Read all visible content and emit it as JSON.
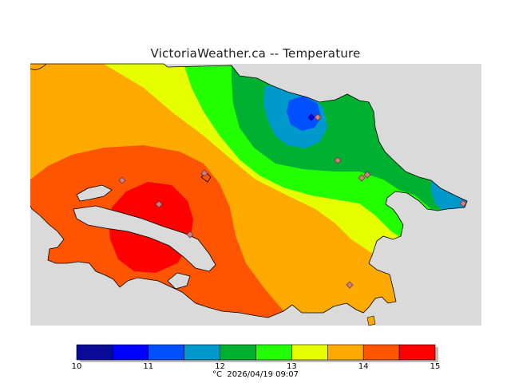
{
  "title": "VictoriaWeather.ca -- Temperature",
  "colors": {
    "land_base": "#ffaa00",
    "water": "#dadada",
    "coast_stroke": "#000000",
    "station_fill": "#d08080",
    "station_stroke": "#6b3b3b"
  },
  "legend": {
    "bands": [
      {
        "from": 10.0,
        "to": 10.5,
        "color": "#0a0a99"
      },
      {
        "from": 10.5,
        "to": 11.0,
        "color": "#0000ff"
      },
      {
        "from": 11.0,
        "to": 11.5,
        "color": "#0050ff"
      },
      {
        "from": 11.5,
        "to": 12.0,
        "color": "#0099cc"
      },
      {
        "from": 12.0,
        "to": 12.5,
        "color": "#00b030"
      },
      {
        "from": 12.5,
        "to": 13.0,
        "color": "#22ff00"
      },
      {
        "from": 13.0,
        "to": 13.5,
        "color": "#e6ff00"
      },
      {
        "from": 13.5,
        "to": 14.0,
        "color": "#ffaa00"
      },
      {
        "from": 14.0,
        "to": 14.5,
        "color": "#ff5500"
      },
      {
        "from": 14.5,
        "to": 15.0,
        "color": "#ff0000"
      }
    ],
    "tick_labels": [
      "10",
      "11",
      "12",
      "13",
      "14",
      "15"
    ]
  },
  "footer": {
    "unit": "°C",
    "timestamp": "2026/04/19 09:07"
  }
}
